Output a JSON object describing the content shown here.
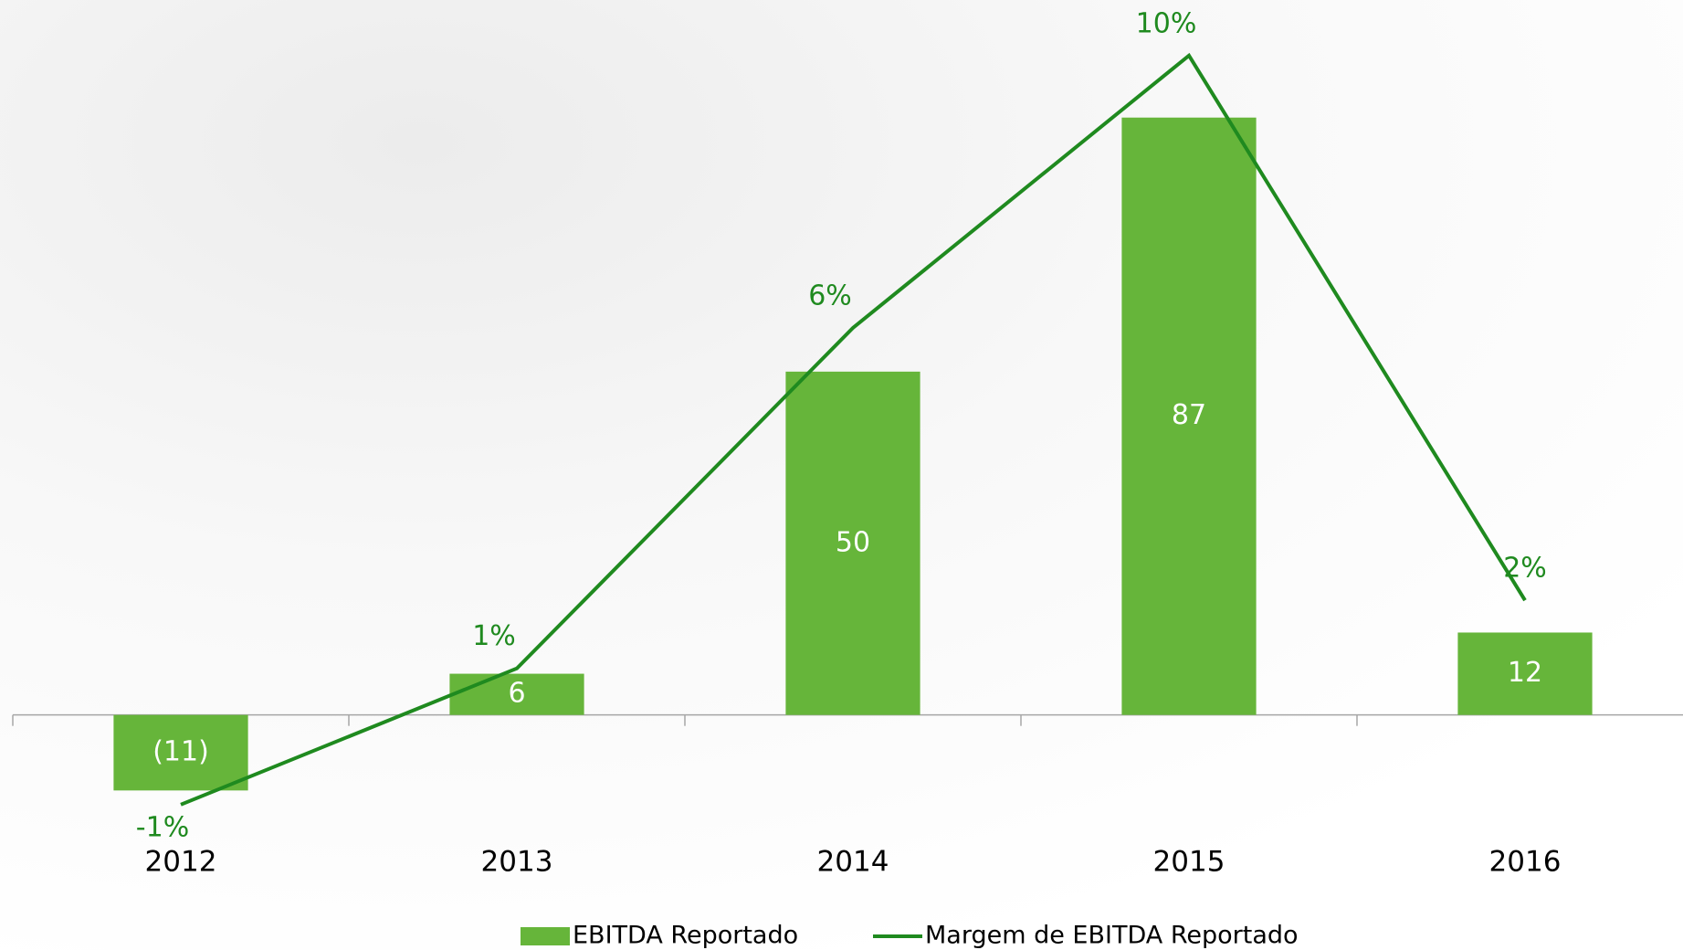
{
  "chart_data": {
    "type": "bar",
    "categories": [
      "2012",
      "2013",
      "2014",
      "2015",
      "2016"
    ],
    "series": [
      {
        "name": "EBITDA Reportado",
        "color": "#66b53a",
        "values": [
          -11,
          6,
          50,
          87,
          12
        ],
        "value_labels": [
          "(11)",
          "6",
          "50",
          "87",
          "12"
        ]
      },
      {
        "name": "Margem de EBITDA Reportado",
        "color": "#1f8a1f",
        "axis": "y2",
        "type": "line",
        "values": [
          -1,
          1,
          6,
          10,
          2
        ],
        "value_labels": [
          "-1%",
          "1%",
          "6%",
          "10%",
          "2%"
        ]
      }
    ],
    "ylim": [
      -20,
      100
    ],
    "y2lim": [
      -1.7,
      10.4
    ]
  }
}
